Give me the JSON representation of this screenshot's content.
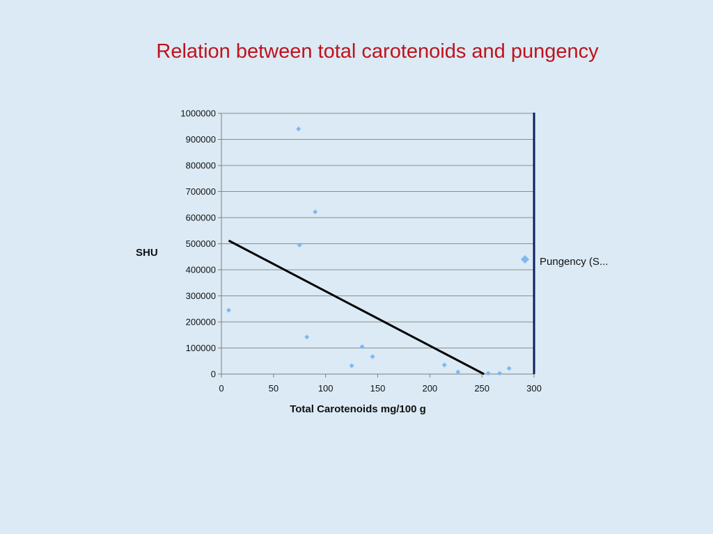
{
  "slide": {
    "title": "Relation between total carotenoids and pungency"
  },
  "colors": {
    "background": "#dbeaf4",
    "title": "#c0121c",
    "points": "#7fb8f0",
    "trendline": "#000000",
    "right_axis": "#0b1f5c"
  },
  "chart_data": {
    "type": "scatter",
    "title": "",
    "xlabel": "Total Carotenoids mg/100 g",
    "ylabel": "SHU",
    "xlim": [
      0,
      300
    ],
    "ylim": [
      0,
      1000000
    ],
    "x_ticks": [
      "0",
      "50",
      "100",
      "150",
      "200",
      "250",
      "300"
    ],
    "y_ticks": [
      "0",
      "100000",
      "200000",
      "300000",
      "400000",
      "500000",
      "600000",
      "700000",
      "800000",
      "900000",
      "1000000"
    ],
    "grid": true,
    "legend_position": "right",
    "marker": "diamond",
    "series": [
      {
        "name": "Pungency (S...",
        "points": [
          {
            "x": 7,
            "y": 245000
          },
          {
            "x": 74,
            "y": 940000
          },
          {
            "x": 75,
            "y": 495000
          },
          {
            "x": 82,
            "y": 142000
          },
          {
            "x": 90,
            "y": 622000
          },
          {
            "x": 125,
            "y": 32000
          },
          {
            "x": 135,
            "y": 105000
          },
          {
            "x": 145,
            "y": 67000
          },
          {
            "x": 214,
            "y": 35000
          },
          {
            "x": 227,
            "y": 8000
          },
          {
            "x": 256,
            "y": 3000
          },
          {
            "x": 267,
            "y": 3000
          },
          {
            "x": 276,
            "y": 22000
          }
        ]
      }
    ],
    "trendline": {
      "type": "linear",
      "x": [
        7,
        252
      ],
      "y": [
        512000,
        0
      ]
    }
  }
}
